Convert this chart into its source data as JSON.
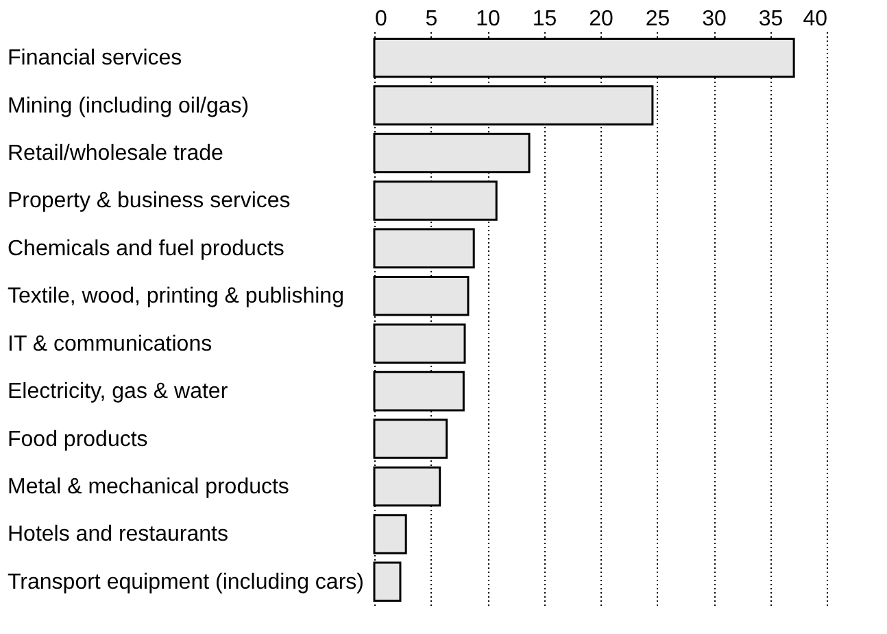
{
  "chart_data": {
    "type": "bar",
    "orientation": "horizontal",
    "categories": [
      "Financial services",
      "Mining (including oil/gas)",
      "Retail/wholesale trade",
      "Property & business services",
      "Chemicals and fuel products",
      "Textile, wood, printing & publishing",
      "IT & communications",
      "Electricity, gas & water",
      "Food products",
      "Metal & mechanical products",
      "Hotels and restaurants",
      "Transport equipment (including cars)"
    ],
    "values": [
      37.1,
      24.6,
      13.7,
      10.8,
      8.8,
      8.3,
      8.0,
      7.9,
      6.4,
      5.8,
      2.8,
      2.3
    ],
    "color": "#e6e6e6",
    "xlim": [
      0,
      40
    ],
    "xticks": [
      0,
      5,
      10,
      15,
      20,
      25,
      30,
      35,
      40
    ],
    "grid": "x"
  }
}
